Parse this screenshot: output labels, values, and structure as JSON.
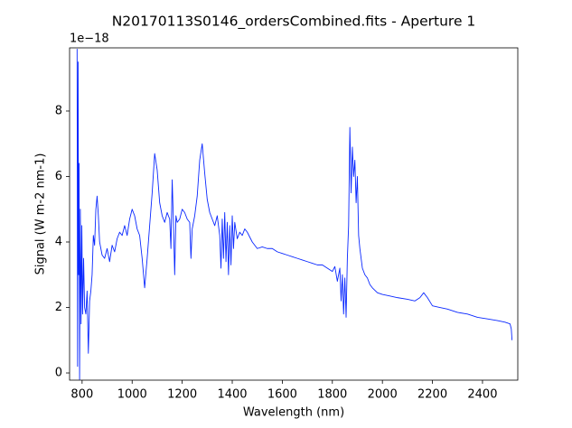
{
  "chart_data": {
    "type": "line",
    "title": "N20170113S0146_ordersCombined.fits - Aperture 1",
    "xlabel": "Wavelength (nm)",
    "ylabel": "Signal (W m-2 nm-1)",
    "y_offset_text": "1e−18",
    "color": "#0a28ff",
    "xlim": [
      750,
      2541
    ],
    "ylim": [
      -0.22,
      9.93
    ],
    "xticks": [
      800,
      1000,
      1200,
      1400,
      1600,
      1800,
      2000,
      2200,
      2400
    ],
    "yticks": [
      0,
      2,
      4,
      6,
      8
    ],
    "grid": false,
    "x": [
      780,
      782,
      784,
      786,
      788,
      790,
      793,
      796,
      799,
      802,
      806,
      810,
      815,
      820,
      825,
      830,
      835,
      840,
      845,
      850,
      855,
      860,
      865,
      870,
      880,
      890,
      900,
      910,
      920,
      930,
      940,
      950,
      960,
      970,
      980,
      990,
      1000,
      1010,
      1020,
      1030,
      1040,
      1050,
      1060,
      1070,
      1080,
      1090,
      1100,
      1110,
      1120,
      1130,
      1140,
      1150,
      1155,
      1160,
      1165,
      1170,
      1175,
      1180,
      1190,
      1200,
      1210,
      1220,
      1230,
      1235,
      1240,
      1250,
      1260,
      1270,
      1280,
      1290,
      1300,
      1310,
      1320,
      1330,
      1340,
      1350,
      1355,
      1360,
      1365,
      1370,
      1375,
      1380,
      1385,
      1390,
      1395,
      1400,
      1405,
      1410,
      1420,
      1430,
      1440,
      1450,
      1460,
      1480,
      1500,
      1520,
      1540,
      1560,
      1580,
      1600,
      1620,
      1640,
      1660,
      1680,
      1700,
      1720,
      1740,
      1760,
      1780,
      1800,
      1810,
      1820,
      1830,
      1835,
      1840,
      1845,
      1850,
      1855,
      1860,
      1865,
      1870,
      1875,
      1880,
      1885,
      1890,
      1895,
      1900,
      1905,
      1910,
      1920,
      1930,
      1940,
      1950,
      1960,
      1980,
      2000,
      2030,
      2060,
      2100,
      2130,
      2150,
      2165,
      2180,
      2200,
      2230,
      2260,
      2300,
      2340,
      2380,
      2420,
      2460,
      2490,
      2510,
      2515,
      2518
    ],
    "values": [
      9.9,
      0.2,
      9.5,
      3,
      6.4,
      -0.2,
      5,
      1.5,
      4.5,
      1.8,
      3.5,
      2.0,
      1.8,
      2.5,
      0.6,
      2.2,
      2.5,
      3.0,
      4.2,
      3.9,
      5.0,
      5.4,
      4.8,
      4.0,
      3.6,
      3.5,
      3.8,
      3.4,
      3.9,
      3.7,
      4.1,
      4.3,
      4.2,
      4.5,
      4.2,
      4.7,
      5.0,
      4.8,
      4.4,
      4.2,
      3.5,
      2.6,
      3.5,
      4.5,
      5.5,
      6.7,
      6.2,
      5.2,
      4.8,
      4.6,
      4.9,
      4.7,
      3.8,
      5.9,
      4.6,
      3.0,
      4.8,
      4.6,
      4.7,
      5.0,
      4.9,
      4.7,
      4.6,
      3.5,
      4.4,
      4.8,
      5.4,
      6.5,
      7.0,
      6.1,
      5.3,
      4.9,
      4.7,
      4.5,
      4.8,
      4.2,
      3.2,
      4.7,
      3.5,
      4.9,
      3.4,
      4.6,
      3.0,
      4.5,
      3.3,
      4.8,
      3.8,
      4.6,
      4.1,
      4.3,
      4.2,
      4.4,
      4.3,
      4.0,
      3.8,
      3.85,
      3.8,
      3.8,
      3.7,
      3.65,
      3.6,
      3.55,
      3.5,
      3.45,
      3.4,
      3.35,
      3.3,
      3.3,
      3.2,
      3.1,
      3.25,
      2.8,
      3.2,
      2.2,
      3.0,
      1.8,
      2.9,
      1.7,
      3.5,
      4.5,
      7.5,
      5.5,
      6.9,
      6.0,
      6.5,
      5.2,
      6.0,
      4.2,
      3.8,
      3.2,
      3.0,
      2.9,
      2.7,
      2.6,
      2.45,
      2.4,
      2.35,
      2.3,
      2.25,
      2.2,
      2.3,
      2.45,
      2.3,
      2.05,
      2.0,
      1.95,
      1.85,
      1.8,
      1.7,
      1.65,
      1.6,
      1.55,
      1.5,
      1.35,
      1.0
    ]
  }
}
